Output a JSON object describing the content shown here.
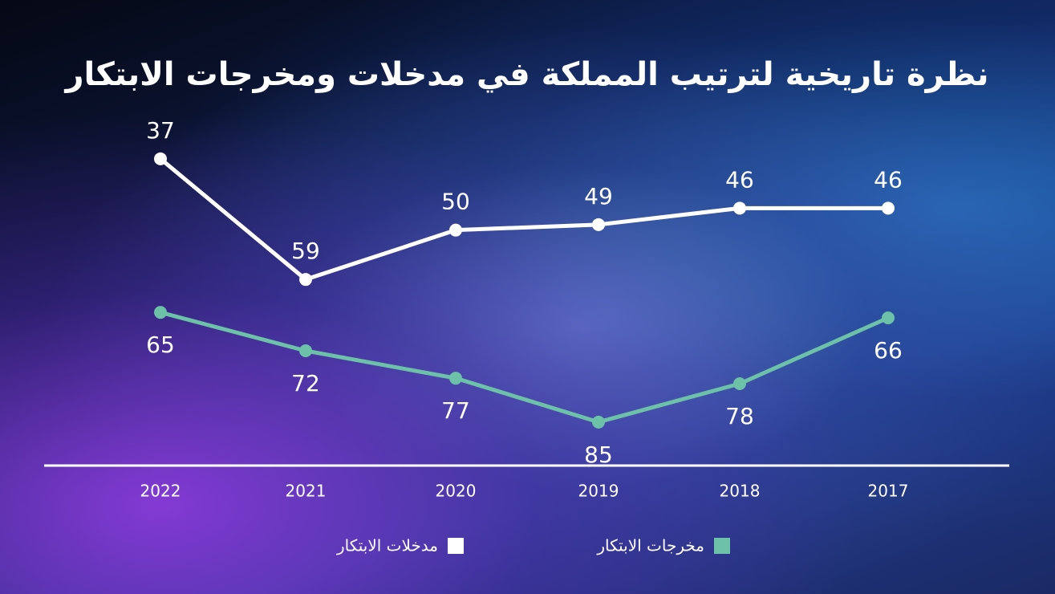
{
  "chart_data": {
    "type": "line",
    "title": "نظرة تاريخية لترتيب المملكة في مدخلات ومخرجات الابتكار",
    "categories": [
      "2022",
      "2021",
      "2020",
      "2019",
      "2018",
      "2017"
    ],
    "series": [
      {
        "name": "مدخلات الابتكار",
        "color": "#ffffff",
        "values": [
          37,
          59,
          50,
          49,
          46,
          46
        ]
      },
      {
        "name": "مخرجات الابتكار",
        "color": "#6cc1a8",
        "values": [
          65,
          72,
          77,
          85,
          78,
          66
        ]
      }
    ],
    "ylim": [
      90,
      30
    ]
  }
}
